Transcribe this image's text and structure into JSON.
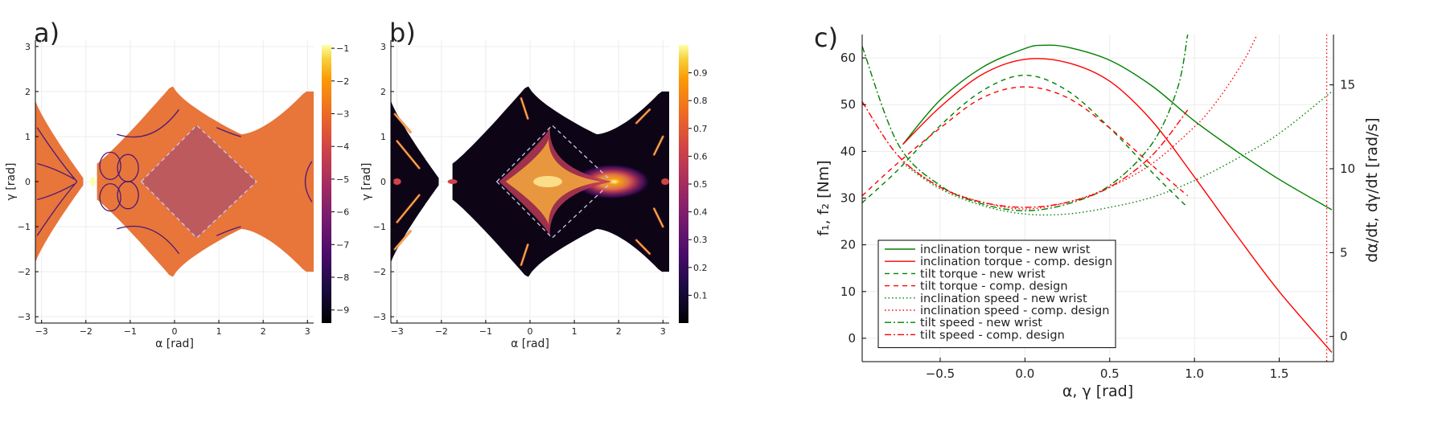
{
  "panels": [
    {
      "label": "a)",
      "xlabel": "α [rad]",
      "ylabel": "γ [rad]",
      "xticks": [
        -3,
        -2,
        -1,
        0,
        1,
        2,
        3
      ],
      "yticks": [
        -3,
        -2,
        -1,
        0,
        1,
        2,
        3
      ],
      "xlim": [
        -3.14,
        3.14
      ],
      "ylim": [
        -3.14,
        3.14
      ],
      "colorbar": {
        "ticks": [
          -1,
          -2,
          -3,
          -4,
          -5,
          -6,
          -7,
          -8,
          -9
        ],
        "range": [
          -9.4,
          -0.9
        ],
        "colormap": "inferno"
      },
      "fill_color": "#e8753a"
    },
    {
      "label": "b)",
      "xlabel": "α [rad]",
      "ylabel": "γ [rad]",
      "xticks": [
        -3,
        -2,
        -1,
        0,
        1,
        2,
        3
      ],
      "yticks": [
        -3,
        -2,
        -1,
        0,
        1,
        2,
        3
      ],
      "xlim": [
        -3.14,
        3.14
      ],
      "ylim": [
        -3.14,
        3.14
      ],
      "colorbar": {
        "ticks": [
          0.9,
          0.8,
          0.7,
          0.6,
          0.5,
          0.4,
          0.3,
          0.2,
          0.1
        ],
        "range": [
          0.0,
          1.0
        ],
        "colormap": "inferno"
      },
      "fill_color": "#0d0416"
    }
  ],
  "chart_data": [
    {
      "type": "heatmap",
      "title": "a)",
      "xlabel": "α [rad]",
      "ylabel": "γ [rad]",
      "xlim": [
        -3.14,
        3.14
      ],
      "ylim": [
        -3.14,
        3.14
      ],
      "colorbar_range": [
        -9.4,
        -0.9
      ]
    },
    {
      "type": "heatmap",
      "title": "b)",
      "xlabel": "α [rad]",
      "ylabel": "γ [rad]",
      "xlim": [
        -3.14,
        3.14
      ],
      "ylim": [
        -3.14,
        3.14
      ],
      "colorbar_range": [
        0.0,
        1.0
      ]
    },
    {
      "type": "line",
      "title": "c)",
      "xlabel": "α, γ [rad]",
      "ylabel": "f₁, f₂ [Nm]",
      "ylabel_right": "dα/dt, dγ/dt [rad/s]",
      "xlim": [
        -0.96,
        1.82
      ],
      "ylim": [
        -5,
        65
      ],
      "ylim_right": [
        -1.5,
        18
      ],
      "xticks": [
        -0.5,
        0.0,
        0.5,
        1.0,
        1.5
      ],
      "xtick_labels": [
        "−0.5",
        "0.0",
        "0.5",
        "1.0",
        "1.5"
      ],
      "yticks": [
        0,
        10,
        20,
        30,
        40,
        50,
        60
      ],
      "yticks_right": [
        0,
        5,
        10,
        15
      ],
      "legend_position": "bottom-left",
      "series": [
        {
          "name": "inclination torque - new wrist",
          "axis": "left",
          "color": "#008000",
          "dash": "solid",
          "x": [
            -0.72,
            -0.5,
            -0.25,
            0.0,
            0.1,
            0.25,
            0.5,
            0.75,
            1.0,
            1.25,
            1.5,
            1.81
          ],
          "y": [
            41.5,
            51.0,
            58.0,
            62.0,
            62.7,
            62.3,
            59.5,
            54.0,
            46.5,
            40.0,
            34.0,
            27.5
          ]
        },
        {
          "name": "inclination torque - comp. design",
          "axis": "left",
          "color": "#ff0000",
          "dash": "solid",
          "x": [
            -0.72,
            -0.5,
            -0.25,
            0.0,
            0.25,
            0.5,
            0.75,
            1.0,
            1.25,
            1.5,
            1.81
          ],
          "y": [
            41.5,
            49.5,
            56.5,
            59.7,
            59.0,
            55.0,
            46.5,
            34.5,
            22.0,
            10.0,
            -3.0
          ]
        },
        {
          "name": "tilt torque - new wrist",
          "axis": "left",
          "color": "#008000",
          "dash": "6,5",
          "x": [
            -0.96,
            -0.75,
            -0.5,
            -0.25,
            0.0,
            0.25,
            0.5,
            0.75,
            0.96
          ],
          "y": [
            29.0,
            36.0,
            45.5,
            53.0,
            56.3,
            53.0,
            45.0,
            35.5,
            28.0
          ]
        },
        {
          "name": "tilt torque - comp. design",
          "axis": "left",
          "color": "#ff0000",
          "dash": "6,5",
          "x": [
            -0.96,
            -0.75,
            -0.5,
            -0.25,
            0.0,
            0.25,
            0.5,
            0.75,
            0.96
          ],
          "y": [
            30.5,
            37.5,
            45.0,
            51.5,
            53.8,
            51.5,
            45.0,
            37.0,
            30.5
          ]
        },
        {
          "name": "inclination speed - new wrist",
          "axis": "right",
          "color": "#008000",
          "dash": "1.5,3",
          "x": [
            -0.72,
            -0.5,
            -0.25,
            0.0,
            0.25,
            0.5,
            0.75,
            1.0,
            1.25,
            1.5,
            1.81
          ],
          "y": [
            10.3,
            8.8,
            7.8,
            7.3,
            7.3,
            7.7,
            8.3,
            9.3,
            10.6,
            12.1,
            14.6
          ]
        },
        {
          "name": "inclination speed - comp. design",
          "axis": "right",
          "color": "#ff0000",
          "dash": "1.5,3",
          "x": [
            -0.72,
            -0.5,
            -0.25,
            0.0,
            0.25,
            0.5,
            0.75,
            1.0,
            1.1,
            1.2,
            1.3,
            1.37
          ],
          "y": [
            10.4,
            8.9,
            8.0,
            7.6,
            8.0,
            8.9,
            10.3,
            12.5,
            13.6,
            15.0,
            16.6,
            18.0
          ]
        },
        {
          "name": "tilt speed - new wrist",
          "axis": "right",
          "color": "#008000",
          "dash": "8,3,2,3",
          "x": [
            -0.96,
            -0.75,
            -0.5,
            -0.25,
            0.0,
            0.25,
            0.5,
            0.75,
            0.9,
            0.96
          ],
          "y": [
            17.3,
            11.5,
            9.0,
            7.9,
            7.5,
            7.9,
            9.0,
            11.5,
            14.8,
            18.0
          ]
        },
        {
          "name": "tilt speed - comp. design",
          "axis": "right",
          "color": "#ff0000",
          "dash": "8,3,2,3",
          "x": [
            -0.96,
            -0.75,
            -0.5,
            -0.25,
            0.0,
            0.25,
            0.5,
            0.75,
            0.96
          ],
          "y": [
            14.0,
            10.8,
            8.9,
            8.0,
            7.7,
            8.0,
            8.9,
            10.8,
            13.5
          ]
        }
      ],
      "vertical_marker": {
        "x": 1.78,
        "color": "#ff0000",
        "dash": "1.5,3",
        "axis": "right"
      }
    }
  ]
}
